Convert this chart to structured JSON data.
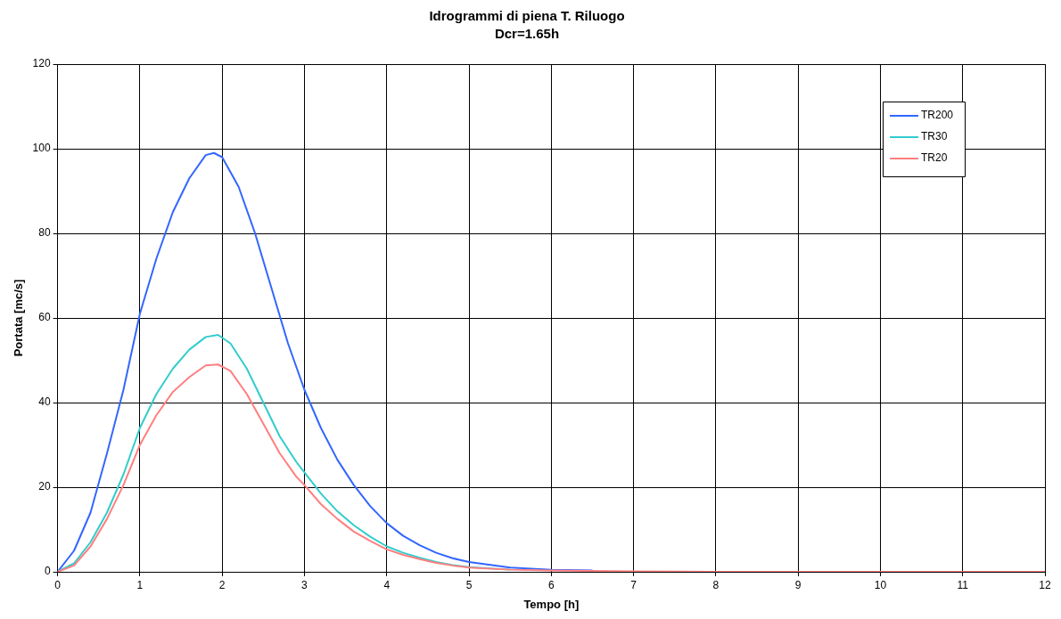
{
  "chart_data": {
    "type": "line",
    "title": "Idrogrammi di piena T. Riluogo",
    "subtitle": "Dcr=1.65h",
    "xlabel": "Tempo [h]",
    "ylabel": "Portata [mc/s]",
    "xlim": [
      0,
      12
    ],
    "xticks": [
      0,
      1,
      2,
      3,
      4,
      5,
      6,
      7,
      8,
      9,
      10,
      11,
      12
    ],
    "ylim": [
      0,
      120
    ],
    "yticks": [
      0,
      20,
      40,
      60,
      80,
      100,
      120
    ],
    "grid": true,
    "legend": "top right",
    "marker": "none",
    "line_style": "solid",
    "series": [
      {
        "name": "TR200",
        "color": "#3366ff",
        "x": [
          0,
          0.2,
          0.4,
          0.6,
          0.8,
          1.0,
          1.2,
          1.4,
          1.6,
          1.8,
          1.9,
          2.0,
          2.2,
          2.4,
          2.6,
          2.8,
          3.0,
          3.2,
          3.4,
          3.6,
          3.8,
          4.0,
          4.2,
          4.4,
          4.6,
          4.8,
          5.0,
          5.5,
          6.0,
          6.5
        ],
        "values": [
          0,
          5,
          14,
          28,
          43,
          61,
          74,
          85,
          93,
          98.5,
          99,
          98,
          91,
          80,
          67,
          54,
          43,
          34,
          26.5,
          20.5,
          15.5,
          11.5,
          8.5,
          6.3,
          4.5,
          3.2,
          2.3,
          1.0,
          0.5,
          0.3
        ]
      },
      {
        "name": "TR30",
        "color": "#33cccc",
        "x": [
          0,
          0.2,
          0.4,
          0.6,
          0.8,
          1.0,
          1.2,
          1.4,
          1.6,
          1.8,
          1.95,
          2.1,
          2.3,
          2.5,
          2.7,
          2.9,
          3.0,
          3.2,
          3.4,
          3.6,
          3.8,
          4.0,
          4.2,
          4.4,
          4.6,
          4.8,
          5.0,
          5.5
        ],
        "values": [
          0,
          2,
          7,
          14,
          23,
          34,
          42,
          48,
          52.5,
          55.5,
          56,
          54,
          48,
          40,
          32,
          26,
          23.5,
          18.5,
          14.3,
          11,
          8.3,
          6,
          4.5,
          3.3,
          2.3,
          1.6,
          1.1,
          0.5
        ]
      },
      {
        "name": "TR20",
        "color": "#ff7f7f",
        "x": [
          0,
          0.2,
          0.4,
          0.6,
          0.8,
          1.0,
          1.2,
          1.4,
          1.6,
          1.8,
          1.95,
          2.1,
          2.3,
          2.5,
          2.7,
          2.9,
          3.0,
          3.2,
          3.4,
          3.6,
          3.8,
          4.0,
          4.2,
          4.4,
          4.6,
          4.8,
          5.0,
          5.5,
          6.0,
          7.0,
          8.0,
          12.0
        ],
        "values": [
          0,
          1.5,
          6,
          12.5,
          20.5,
          30,
          37,
          42.5,
          46,
          48.8,
          49,
          47.5,
          42,
          35,
          28,
          22.5,
          20.5,
          16,
          12.5,
          9.5,
          7.3,
          5.3,
          4,
          3,
          2.1,
          1.5,
          1,
          0.5,
          0.3,
          0.1,
          0,
          0
        ]
      }
    ]
  }
}
